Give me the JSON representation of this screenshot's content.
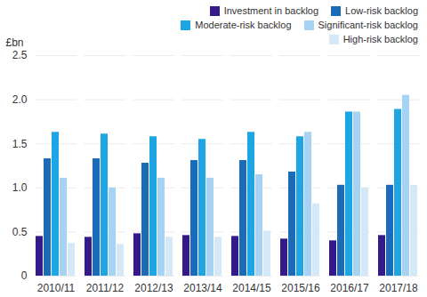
{
  "chart_data": {
    "type": "bar",
    "categories": [
      "2010/11",
      "2011/12",
      "2012/13",
      "2013/14",
      "2014/15",
      "2015/16",
      "2016/17",
      "2017/18"
    ],
    "series": [
      {
        "name": "Investment in backlog",
        "color": "#34198a",
        "values": [
          0.45,
          0.44,
          0.48,
          0.46,
          0.45,
          0.42,
          0.4,
          0.46
        ]
      },
      {
        "name": "Low-risk backlog",
        "color": "#1b6cb8",
        "values": [
          1.33,
          1.33,
          1.28,
          1.31,
          1.31,
          1.18,
          1.03,
          1.03
        ]
      },
      {
        "name": "Moderate-risk backlog",
        "color": "#1ea5e3",
        "values": [
          1.63,
          1.61,
          1.58,
          1.55,
          1.63,
          1.58,
          1.86,
          1.89
        ]
      },
      {
        "name": "Significant-risk backlog",
        "color": "#a6d3f3",
        "values": [
          1.11,
          1.0,
          1.11,
          1.11,
          1.15,
          1.63,
          1.86,
          2.05
        ]
      },
      {
        "name": "High-risk backlog",
        "color": "#d5e8f8",
        "values": [
          0.37,
          0.36,
          0.44,
          0.44,
          0.51,
          0.82,
          1.0,
          1.03
        ]
      }
    ],
    "y_label": "£bn",
    "ylim": [
      0,
      2.5
    ],
    "yticks": [
      0,
      0.5,
      {
        "value": 1,
        "label": "1.0"
      },
      1.5,
      {
        "value": 2,
        "label": "2.0"
      },
      2.5
    ],
    "grid": true,
    "legend": "top"
  }
}
